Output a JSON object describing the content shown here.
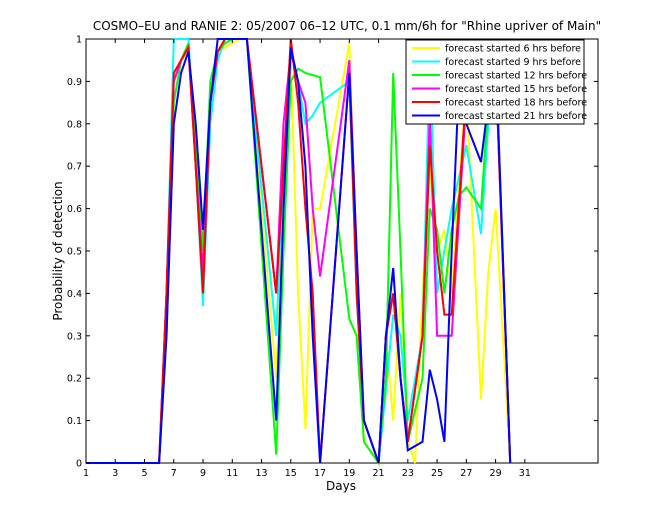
{
  "chart_data": {
    "type": "line",
    "title": "COSMO–EU and RANIE 2: 05/2007 06–12 UTC, 0.1 mm/6h for \"Rhine upriver of Main\"",
    "xlabel": "Days",
    "ylabel": "Probability of detection",
    "xlim": [
      1,
      36
    ],
    "ylim": [
      0,
      1
    ],
    "xticks": [
      "1",
      "3",
      "5",
      "7",
      "9",
      "11",
      "13",
      "15",
      "17",
      "19",
      "21",
      "23",
      "25",
      "27",
      "29",
      "31"
    ],
    "yticks": [
      "0",
      "0.1",
      "0.2",
      "0.3",
      "0.4",
      "0.5",
      "0.6",
      "0.7",
      "0.8",
      "0.9",
      "1"
    ],
    "grid": false,
    "legend_position": "top-right",
    "series": [
      {
        "name": "forecast started 6 hrs before",
        "color": "#ffff00",
        "points": [
          [
            1,
            0
          ],
          [
            6,
            0
          ],
          [
            6.5,
            0.3
          ],
          [
            7,
            0.9
          ],
          [
            7.5,
            0.95
          ],
          [
            8,
            0.97
          ],
          [
            8.5,
            0.8
          ],
          [
            9,
            0.55
          ],
          [
            9.5,
            0.85
          ],
          [
            10,
            0.97
          ],
          [
            10.5,
            0.98
          ],
          [
            11,
            0.99
          ],
          [
            11.5,
            1
          ],
          [
            12,
            1
          ],
          [
            14,
            0.2
          ],
          [
            14.5,
            0.6
          ],
          [
            15,
            0.95
          ],
          [
            15.5,
            0.4
          ],
          [
            16,
            0.08
          ],
          [
            16.5,
            0.6
          ],
          [
            17,
            0.6
          ],
          [
            19,
            0.99
          ],
          [
            19.5,
            0.5
          ],
          [
            20,
            0.05
          ],
          [
            21,
            0
          ],
          [
            21.5,
            0.3
          ],
          [
            22,
            0.1
          ],
          [
            22.5,
            0.4
          ],
          [
            23,
            0.05
          ],
          [
            23.5,
            0
          ],
          [
            24,
            0.4
          ],
          [
            24.5,
            0.7
          ],
          [
            25,
            0.5
          ],
          [
            25.5,
            0.55
          ],
          [
            26,
            0.4
          ],
          [
            26.5,
            0.65
          ],
          [
            27,
            0.88
          ],
          [
            28,
            0.15
          ],
          [
            28.5,
            0.45
          ],
          [
            29,
            0.6
          ],
          [
            30,
            0
          ]
        ]
      },
      {
        "name": "forecast started 9 hrs before",
        "color": "#00ffff",
        "points": [
          [
            1,
            0
          ],
          [
            6,
            0
          ],
          [
            6.5,
            0.4
          ],
          [
            7,
            1
          ],
          [
            7.5,
            1
          ],
          [
            8,
            1
          ],
          [
            8.5,
            0.7
          ],
          [
            9,
            0.37
          ],
          [
            9.5,
            0.8
          ],
          [
            10,
            0.95
          ],
          [
            10.5,
            1
          ],
          [
            11,
            1
          ],
          [
            12,
            1
          ],
          [
            14,
            0.3
          ],
          [
            14.5,
            0.7
          ],
          [
            15,
            0.97
          ],
          [
            15.5,
            0.9
          ],
          [
            16,
            0.8
          ],
          [
            16.5,
            0.82
          ],
          [
            17,
            0.85
          ],
          [
            19,
            0.9
          ],
          [
            19.5,
            0.4
          ],
          [
            20,
            0.1
          ],
          [
            20.5,
            0.05
          ],
          [
            21,
            0
          ],
          [
            22,
            0.35
          ],
          [
            22.5,
            0.3
          ],
          [
            23,
            0.1
          ],
          [
            24,
            0.3
          ],
          [
            24.5,
            0.97
          ],
          [
            25,
            0.4
          ],
          [
            26,
            0.6
          ],
          [
            27,
            0.75
          ],
          [
            28,
            0.54
          ],
          [
            28.5,
            0.8
          ],
          [
            29,
            0.95
          ],
          [
            30,
            0
          ]
        ]
      },
      {
        "name": "forecast started 12 hrs before",
        "color": "#00ff00",
        "points": [
          [
            1,
            0
          ],
          [
            6,
            0
          ],
          [
            6.5,
            0.3
          ],
          [
            7,
            0.85
          ],
          [
            7.5,
            0.95
          ],
          [
            8,
            0.99
          ],
          [
            8.5,
            0.75
          ],
          [
            9,
            0.5
          ],
          [
            9.5,
            0.9
          ],
          [
            10,
            0.97
          ],
          [
            10.5,
            0.99
          ],
          [
            11,
            1
          ],
          [
            12,
            1
          ],
          [
            14,
            0.02
          ],
          [
            14.5,
            0.5
          ],
          [
            15,
            0.9
          ],
          [
            15.5,
            0.93
          ],
          [
            16,
            0.92
          ],
          [
            17,
            0.91
          ],
          [
            19,
            0.34
          ],
          [
            19.5,
            0.3
          ],
          [
            20,
            0.05
          ],
          [
            21,
            0
          ],
          [
            21.5,
            0.2
          ],
          [
            22,
            0.92
          ],
          [
            22.5,
            0.5
          ],
          [
            23,
            0.05
          ],
          [
            24,
            0.2
          ],
          [
            24.5,
            0.6
          ],
          [
            25,
            0.55
          ],
          [
            25.5,
            0.4
          ],
          [
            26,
            0.55
          ],
          [
            26.5,
            0.63
          ],
          [
            27,
            0.65
          ],
          [
            28,
            0.6
          ],
          [
            28.5,
            0.85
          ],
          [
            29,
            0.97
          ],
          [
            30,
            0
          ]
        ]
      },
      {
        "name": "forecast started 15 hrs before",
        "color": "#ff00ff",
        "points": [
          [
            1,
            0
          ],
          [
            6,
            0
          ],
          [
            6.5,
            0.4
          ],
          [
            7,
            0.9
          ],
          [
            7.5,
            0.95
          ],
          [
            8,
            0.98
          ],
          [
            8.5,
            0.7
          ],
          [
            9,
            0.45
          ],
          [
            9.5,
            0.85
          ],
          [
            10,
            0.97
          ],
          [
            10.5,
            1
          ],
          [
            11,
            1
          ],
          [
            12,
            1
          ],
          [
            14,
            0.4
          ],
          [
            14.5,
            0.8
          ],
          [
            15,
            0.97
          ],
          [
            15.5,
            0.9
          ],
          [
            16,
            0.85
          ],
          [
            16.5,
            0.6
          ],
          [
            17,
            0.44
          ],
          [
            19,
            0.95
          ],
          [
            19.5,
            0.5
          ],
          [
            20,
            0.1
          ],
          [
            21,
            0
          ],
          [
            21.5,
            0.3
          ],
          [
            22,
            0.4
          ],
          [
            22.5,
            0.2
          ],
          [
            23,
            0.05
          ],
          [
            24,
            0.3
          ],
          [
            24.5,
            0.82
          ],
          [
            25,
            0.3
          ],
          [
            25.5,
            0.3
          ],
          [
            26,
            0.3
          ],
          [
            27,
            0.86
          ],
          [
            28,
            0.95
          ],
          [
            28.5,
            0.95
          ],
          [
            29,
            0.94
          ],
          [
            30,
            0
          ]
        ]
      },
      {
        "name": "forecast started 18 hrs before",
        "color": "#ff0000",
        "points": [
          [
            1,
            0
          ],
          [
            6,
            0
          ],
          [
            6.5,
            0.4
          ],
          [
            7,
            0.92
          ],
          [
            7.5,
            0.95
          ],
          [
            8,
            0.98
          ],
          [
            8.5,
            0.7
          ],
          [
            9,
            0.4
          ],
          [
            9.5,
            0.85
          ],
          [
            10,
            0.97
          ],
          [
            10.5,
            1
          ],
          [
            11,
            1
          ],
          [
            12,
            1
          ],
          [
            14,
            0.4
          ],
          [
            14.5,
            0.7
          ],
          [
            15,
            1
          ],
          [
            15.5,
            0.85
          ],
          [
            16,
            0.6
          ],
          [
            16.5,
            0.4
          ],
          [
            17,
            0
          ],
          [
            19,
            0.92
          ],
          [
            19.5,
            0.4
          ],
          [
            20,
            0.1
          ],
          [
            21,
            0
          ],
          [
            21.5,
            0.3
          ],
          [
            22,
            0.4
          ],
          [
            22.5,
            0.2
          ],
          [
            23,
            0.05
          ],
          [
            24,
            0.3
          ],
          [
            24.5,
            0.75
          ],
          [
            25,
            0.5
          ],
          [
            25.5,
            0.35
          ],
          [
            26,
            0.35
          ],
          [
            27,
            0.88
          ],
          [
            28,
            0.98
          ],
          [
            28.5,
            0.96
          ],
          [
            29,
            0.94
          ],
          [
            30,
            0
          ]
        ]
      },
      {
        "name": "forecast started 21 hrs before",
        "color": "#0000ff",
        "points": [
          [
            1,
            0
          ],
          [
            6,
            0
          ],
          [
            6.5,
            0.3
          ],
          [
            7,
            0.8
          ],
          [
            7.5,
            0.92
          ],
          [
            8,
            0.97
          ],
          [
            8.5,
            0.8
          ],
          [
            9,
            0.55
          ],
          [
            9.5,
            0.85
          ],
          [
            10,
            1
          ],
          [
            10.5,
            1
          ],
          [
            11,
            1
          ],
          [
            12,
            1
          ],
          [
            14,
            0.1
          ],
          [
            14.5,
            0.6
          ],
          [
            15,
            0.98
          ],
          [
            15.5,
            0.9
          ],
          [
            16,
            0.7
          ],
          [
            16.5,
            0.3
          ],
          [
            17,
            0
          ],
          [
            19,
            0.92
          ],
          [
            19.5,
            0.5
          ],
          [
            20,
            0.1
          ],
          [
            21,
            0
          ],
          [
            21.5,
            0.3
          ],
          [
            22,
            0.46
          ],
          [
            22.5,
            0.2
          ],
          [
            23,
            0.03
          ],
          [
            24,
            0.05
          ],
          [
            24.5,
            0.22
          ],
          [
            25,
            0.15
          ],
          [
            25.5,
            0.05
          ],
          [
            26,
            0.5
          ],
          [
            26.5,
            0.9
          ],
          [
            27,
            0.8
          ],
          [
            28,
            0.71
          ],
          [
            28.5,
            0.85
          ],
          [
            29,
            0.97
          ],
          [
            30,
            0
          ]
        ]
      }
    ]
  }
}
